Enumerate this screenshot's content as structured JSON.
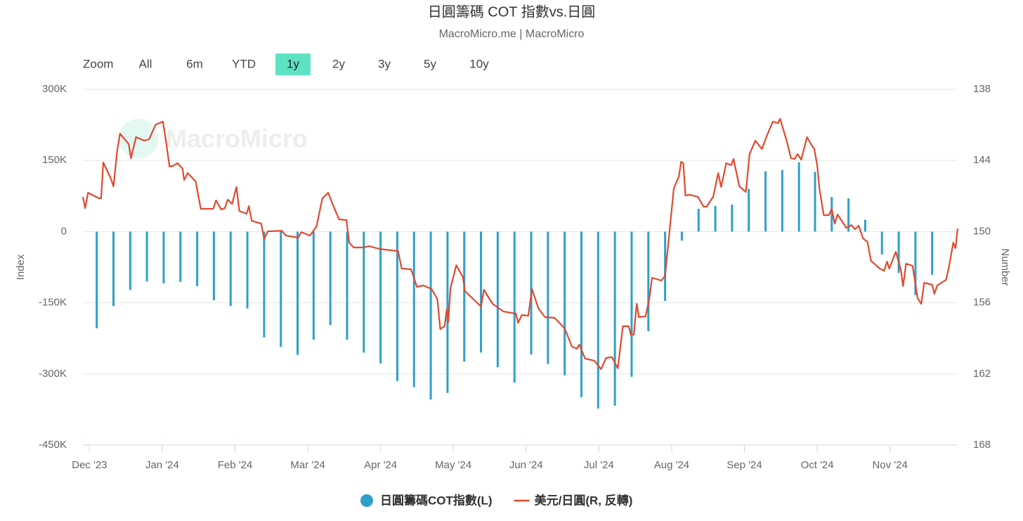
{
  "chart_data": {
    "type": "combo",
    "title": "日圓籌碼 COT 指數vs.日圓",
    "subtitle": "MacroMicro.me | MacroMicro",
    "watermark": "MacroMicro",
    "range_selector": {
      "label": "Zoom",
      "buttons": [
        "All",
        "6m",
        "YTD",
        "1y",
        "2y",
        "3y",
        "5y",
        "10y"
      ],
      "selected": "1y"
    },
    "y_label": "Index",
    "y2_label": "Number",
    "grid": true,
    "legend": "bottom",
    "xlim": [
      -0.09,
      11.93
    ],
    "xticks": [
      {
        "value": 0,
        "label": "Dec '23"
      },
      {
        "value": 1,
        "label": "Jan '24"
      },
      {
        "value": 2,
        "label": "Feb '24"
      },
      {
        "value": 3,
        "label": "Mar '24"
      },
      {
        "value": 4,
        "label": "Apr '24"
      },
      {
        "value": 5,
        "label": "May '24"
      },
      {
        "value": 6,
        "label": "Jun '24"
      },
      {
        "value": 7,
        "label": "Jul '24"
      },
      {
        "value": 8,
        "label": "Aug '24"
      },
      {
        "value": 9,
        "label": "Sep '24"
      },
      {
        "value": 10,
        "label": "Oct '24"
      },
      {
        "value": 11,
        "label": "Nov '24"
      }
    ],
    "ylim": [
      -450000,
      300000
    ],
    "yticks": [
      {
        "value": 300000,
        "label": "300K"
      },
      {
        "value": 150000,
        "label": "150K"
      },
      0,
      {
        "value": -150000,
        "label": "-150K"
      },
      {
        "value": -300000,
        "label": "-300K"
      },
      {
        "value": -450000,
        "label": "-450K"
      }
    ],
    "y2lim": [
      138,
      168
    ],
    "y2_reversed": true,
    "y2ticks": [
      138,
      144,
      150,
      156,
      162,
      168
    ],
    "series": [
      {
        "name": "日圓籌碼COT指數(L)",
        "type": "bar",
        "color": "#2ea0c9",
        "x": [
          0.1,
          0.33,
          0.56,
          0.79,
          1.02,
          1.25,
          1.48,
          1.71,
          1.94,
          2.17,
          2.4,
          2.63,
          2.86,
          3.08,
          3.31,
          3.54,
          3.77,
          4.0,
          4.23,
          4.46,
          4.69,
          4.92,
          5.15,
          5.38,
          5.61,
          5.84,
          6.07,
          6.3,
          6.53,
          6.76,
          6.99,
          7.22,
          7.45,
          7.68,
          7.91,
          8.14,
          8.37,
          8.6,
          8.83,
          9.06,
          9.29,
          9.52,
          9.75,
          9.97,
          10.2,
          10.43,
          10.66,
          10.89,
          11.12,
          11.35,
          11.58
        ],
        "values": [
          -204000,
          -157000,
          -123000,
          -105000,
          -109000,
          -106000,
          -115000,
          -145000,
          -157000,
          -162000,
          -223000,
          -243000,
          -260000,
          -228000,
          -197000,
          -228000,
          -255000,
          -278000,
          -315000,
          -328000,
          -354000,
          -340000,
          -274000,
          -255000,
          -286000,
          -318000,
          -259000,
          -279000,
          -303000,
          -349000,
          -373000,
          -367000,
          -306000,
          -210000,
          -146000,
          -19000,
          48000,
          54000,
          57000,
          90000,
          127000,
          130000,
          146000,
          126000,
          73000,
          70000,
          25000,
          -48000,
          -87000,
          -134000,
          -91000
        ]
      },
      {
        "name": "美元/日圓(R, 反轉)",
        "type": "line",
        "axis": "y2",
        "color": "#e0492f",
        "x": [
          -0.09,
          -0.06,
          -0.02,
          0.13,
          0.16,
          0.19,
          0.29,
          0.33,
          0.38,
          0.42,
          0.54,
          0.57,
          0.64,
          0.75,
          0.82,
          0.91,
          1.01,
          1.05,
          1.1,
          1.15,
          1.21,
          1.28,
          1.3,
          1.35,
          1.46,
          1.53,
          1.7,
          1.74,
          1.81,
          1.86,
          1.9,
          1.96,
          2.02,
          2.06,
          2.16,
          2.19,
          2.23,
          2.36,
          2.4,
          2.45,
          2.64,
          2.7,
          2.87,
          2.91,
          3.03,
          3.12,
          3.2,
          3.28,
          3.34,
          3.43,
          3.53,
          3.57,
          3.63,
          3.77,
          3.84,
          3.98,
          4.24,
          4.29,
          4.42,
          4.5,
          4.59,
          4.7,
          4.78,
          4.82,
          4.88,
          4.91,
          4.93,
          4.96,
          5.04,
          5.13,
          5.16,
          5.28,
          5.38,
          5.42,
          5.49,
          5.54,
          5.69,
          5.86,
          5.89,
          5.94,
          6.03,
          6.08,
          6.17,
          6.26,
          6.39,
          6.53,
          6.63,
          6.7,
          6.73,
          6.81,
          6.94,
          7.03,
          7.1,
          7.18,
          7.26,
          7.33,
          7.41,
          7.44,
          7.48,
          7.52,
          7.55,
          7.64,
          7.69,
          7.73,
          7.86,
          7.91,
          7.97,
          8.03,
          8.1,
          8.13,
          8.16,
          8.19,
          8.25,
          8.36,
          8.44,
          8.48,
          8.57,
          8.64,
          8.68,
          8.75,
          8.82,
          8.85,
          8.93,
          9.02,
          9.07,
          9.15,
          9.24,
          9.3,
          9.39,
          9.46,
          9.49,
          9.58,
          9.64,
          9.69,
          9.73,
          9.78,
          9.86,
          9.92,
          9.96,
          10.0,
          10.03,
          10.09,
          10.16,
          10.2,
          10.24,
          10.28,
          10.4,
          10.47,
          10.52,
          10.57,
          10.63,
          10.69,
          10.74,
          10.86,
          10.92,
          10.96,
          10.99,
          11.08,
          11.15,
          11.18,
          11.22,
          11.31,
          11.38,
          11.43,
          11.47,
          11.58,
          11.61,
          11.65,
          11.77,
          11.81,
          11.87,
          11.9,
          11.93
        ],
        "values": [
          147.07,
          148.02,
          146.72,
          147.19,
          147.19,
          144.17,
          145.47,
          146.18,
          143.22,
          141.74,
          142.63,
          143.81,
          142.03,
          142.33,
          142.21,
          140.97,
          140.73,
          142.33,
          144.52,
          144.46,
          144.23,
          144.7,
          145.65,
          145.06,
          145.77,
          148.08,
          148.08,
          147.37,
          148.14,
          148.02,
          147.31,
          147.67,
          146.24,
          148.26,
          148.5,
          147.84,
          149.09,
          149.33,
          150.63,
          149.98,
          149.92,
          150.34,
          150.51,
          150.04,
          150.34,
          149.57,
          147.19,
          146.72,
          147.67,
          148.97,
          149.03,
          150.93,
          151.34,
          151.34,
          151.22,
          151.46,
          151.64,
          153.12,
          153.18,
          154.66,
          154.54,
          154.84,
          155.67,
          158.22,
          157.98,
          156.56,
          157.63,
          154.78,
          152.83,
          153.83,
          155.02,
          155.73,
          156.32,
          154.9,
          155.61,
          156.09,
          156.74,
          156.92,
          157.69,
          157.04,
          157.09,
          154.84,
          156.5,
          157.21,
          157.27,
          158.16,
          159.7,
          159.88,
          159.52,
          160.71,
          160.89,
          161.6,
          160.65,
          160.59,
          161.53,
          157.98,
          157.98,
          158.69,
          158.69,
          156.09,
          157.21,
          157.15,
          155.79,
          153.89,
          154.13,
          153.72,
          150.04,
          146.36,
          145.35,
          144.11,
          144.23,
          146.95,
          146.89,
          147.07,
          147.9,
          147.9,
          147.07,
          145.06,
          146.24,
          144.23,
          144.4,
          143.87,
          146.18,
          146.66,
          143.46,
          142.33,
          143.04,
          142.03,
          140.73,
          140.85,
          140.49,
          142.33,
          143.81,
          143.87,
          143.46,
          143.93,
          142.03,
          142.68,
          143.04,
          144.4,
          146.36,
          148.61,
          148.61,
          148.08,
          149.33,
          148.56,
          149.68,
          149.45,
          149.8,
          149.5,
          150.57,
          150.87,
          152.47,
          153.12,
          153.3,
          152.53,
          153.12,
          151.7,
          153.24,
          154.6,
          152.71,
          152.88,
          155.61,
          156.09,
          154.31,
          154.48,
          155.25,
          154.54,
          154.07,
          152.99,
          150.93,
          151.4,
          149.74
        ]
      }
    ]
  }
}
